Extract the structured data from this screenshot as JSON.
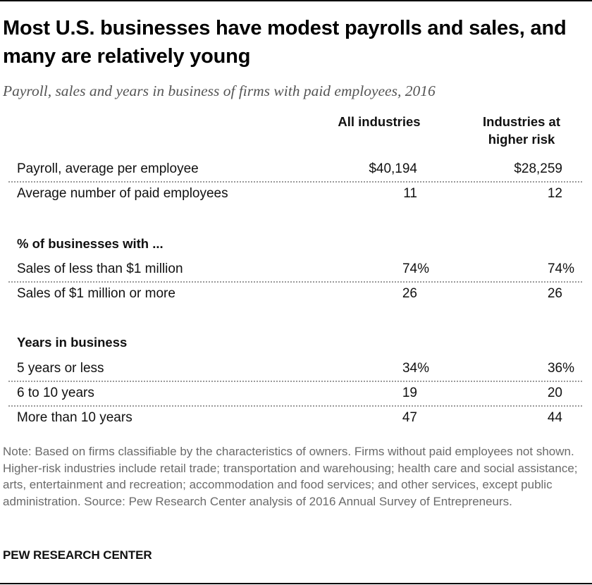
{
  "title": "Most U.S. businesses have modest payrolls and sales, and many are relatively young",
  "subtitle": "Payroll, sales and years in business of firms with paid employees, 2016",
  "columns": {
    "all": "All industries",
    "risk": "Industries at higher risk"
  },
  "chart_data": {
    "type": "table",
    "columns": [
      "All industries",
      "Industries at higher risk"
    ],
    "groups": [
      {
        "heading": "",
        "rows": [
          {
            "label": "Payroll, average per employee",
            "all": "$40,194",
            "risk": "$28,259"
          },
          {
            "label": "Average number of paid employees",
            "all": "11",
            "risk": "12"
          }
        ]
      },
      {
        "heading": "% of businesses with ...",
        "rows": [
          {
            "label": "Sales of less than $1 million",
            "all": "74%",
            "risk": "74%"
          },
          {
            "label": "Sales of $1 million or more",
            "all": "26",
            "risk": "26"
          }
        ]
      },
      {
        "heading": "Years in business",
        "rows": [
          {
            "label": "5 years or less",
            "all": "34%",
            "risk": "36%"
          },
          {
            "label": "6 to 10 years",
            "all": "19",
            "risk": "20"
          },
          {
            "label": "More than 10 years",
            "all": "47",
            "risk": "44"
          }
        ]
      }
    ]
  },
  "note": "Note: Based on firms classifiable by the characteristics of owners. Firms without paid employees not shown. Higher-risk industries include retail trade; transportation and warehousing; health care and social assistance; arts, entertainment and recreation; accommodation and food services; and other services, except public administration. Source: Pew Research Center analysis of 2016 Annual Survey of Entrepreneurs.",
  "brand": "PEW RESEARCH CENTER"
}
